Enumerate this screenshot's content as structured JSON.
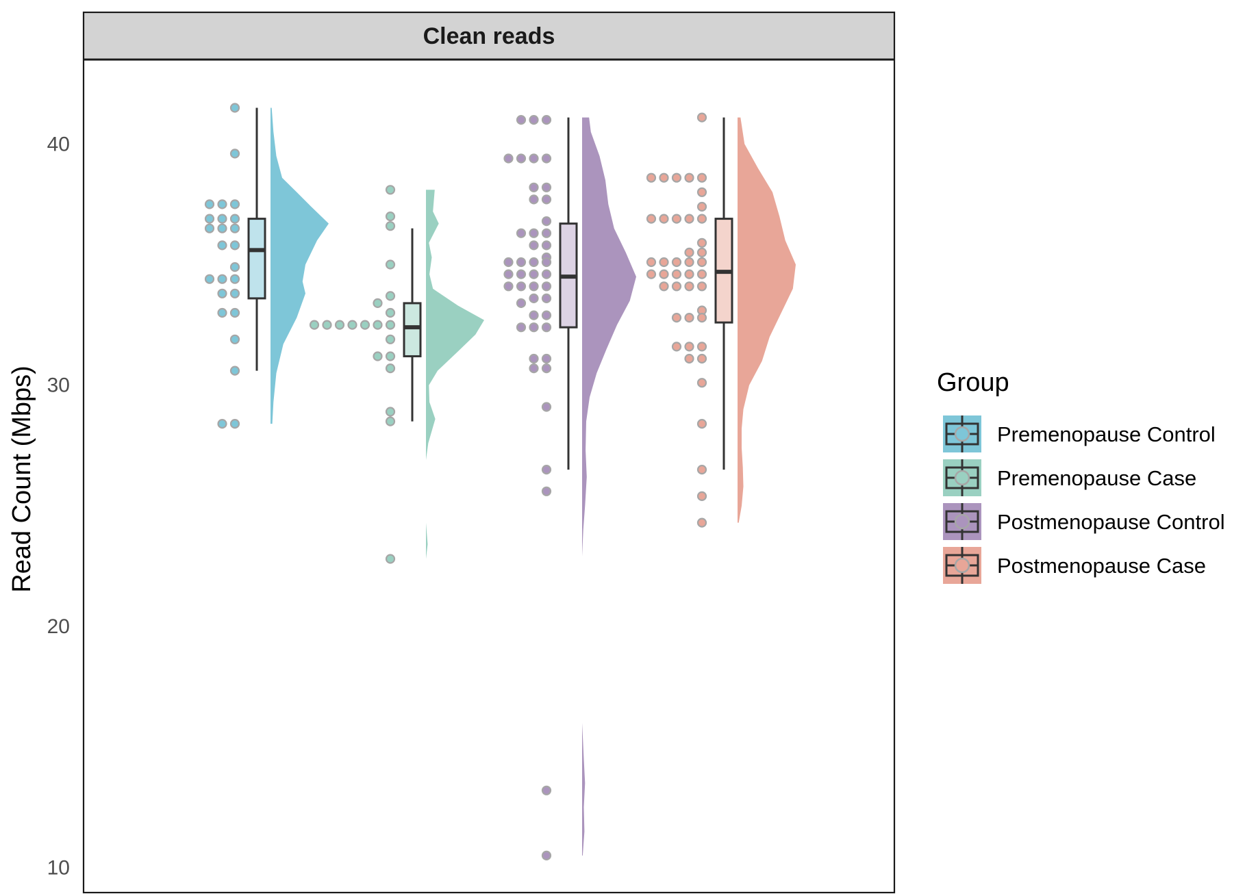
{
  "chart_data": {
    "type": "raincloud",
    "panel_title": "Clean reads",
    "ylabel": "Read Count (Mbps)",
    "xlabel": "",
    "ylim": [
      8.966,
      43.5
    ],
    "yticks": [
      10,
      20,
      30,
      40
    ],
    "ytick_labels": [
      "10",
      "20",
      "30",
      "40"
    ],
    "grid": false,
    "legend": {
      "title": "Group",
      "position": "right"
    },
    "series": [
      {
        "name": "Premenopause Control",
        "fill": "#7ec6d8",
        "box_fill": "#bfe3ec",
        "box": {
          "min": 30.6,
          "q1": 33.6,
          "median": 35.6,
          "q3": 36.9,
          "max": 41.5
        },
        "points": [
          41.5,
          39.6,
          37.5,
          37.5,
          37.5,
          36.9,
          36.9,
          36.9,
          36.5,
          36.5,
          36.5,
          35.8,
          35.8,
          34.9,
          34.4,
          34.4,
          34.4,
          33.8,
          33.8,
          33.0,
          33.0,
          31.9,
          30.6,
          28.4,
          28.4
        ],
        "density": [
          [
            28.4,
            0.03
          ],
          [
            29.3,
            0.05
          ],
          [
            30.5,
            0.1
          ],
          [
            31.7,
            0.22
          ],
          [
            32.8,
            0.45
          ],
          [
            33.8,
            0.6
          ],
          [
            34.3,
            0.55
          ],
          [
            35.0,
            0.6
          ],
          [
            36.0,
            0.8
          ],
          [
            36.7,
            1.0
          ],
          [
            37.4,
            0.7
          ],
          [
            38.0,
            0.45
          ],
          [
            38.6,
            0.2
          ],
          [
            39.5,
            0.1
          ],
          [
            40.5,
            0.05
          ],
          [
            41.5,
            0.02
          ]
        ]
      },
      {
        "name": "Premenopause Case",
        "fill": "#9ad0c1",
        "box_fill": "#cce8e0",
        "box": {
          "min": 28.5,
          "q1": 31.2,
          "median": 32.4,
          "q3": 33.4,
          "max": 36.5
        },
        "points": [
          38.1,
          37.0,
          36.6,
          35.0,
          33.7,
          33.4,
          33.0,
          32.5,
          32.5,
          32.5,
          32.5,
          32.5,
          32.5,
          32.5,
          31.9,
          31.2,
          31.2,
          30.7,
          28.9,
          28.5,
          22.8
        ],
        "density": [
          [
            22.8,
            0.0
          ],
          [
            23.4,
            0.03
          ],
          [
            24.3,
            0.0
          ],
          [
            26.9,
            0.0
          ],
          [
            27.6,
            0.04
          ],
          [
            28.6,
            0.16
          ],
          [
            29.3,
            0.06
          ],
          [
            30.0,
            0.05
          ],
          [
            30.6,
            0.2
          ],
          [
            31.4,
            0.55
          ],
          [
            32.1,
            0.85
          ],
          [
            32.7,
            1.0
          ],
          [
            33.3,
            0.55
          ],
          [
            34.0,
            0.12
          ],
          [
            34.6,
            0.06
          ],
          [
            35.3,
            0.1
          ],
          [
            35.9,
            0.05
          ],
          [
            36.7,
            0.22
          ],
          [
            37.2,
            0.12
          ],
          [
            38.1,
            0.15
          ]
        ]
      },
      {
        "name": "Postmenopause Control",
        "fill": "#ab94bd",
        "box_fill": "#ddd3e4",
        "box": {
          "min": 26.5,
          "q1": 32.4,
          "median": 34.5,
          "q3": 36.7,
          "max": 41.1
        },
        "points": [
          41.0,
          41.0,
          41.0,
          39.4,
          39.4,
          39.4,
          39.4,
          38.2,
          38.2,
          37.7,
          37.7,
          36.8,
          36.3,
          36.3,
          36.3,
          35.8,
          35.8,
          35.3,
          35.1,
          35.1,
          35.1,
          35.1,
          34.6,
          34.6,
          34.6,
          34.6,
          34.1,
          34.1,
          34.1,
          34.1,
          33.6,
          33.6,
          33.4,
          32.9,
          32.9,
          32.4,
          32.4,
          32.4,
          31.1,
          31.1,
          30.7,
          30.7,
          29.1,
          26.5,
          25.6,
          13.2,
          10.5
        ],
        "density": [
          [
            10.5,
            0.01
          ],
          [
            11.5,
            0.04
          ],
          [
            12.5,
            0.03
          ],
          [
            13.5,
            0.05
          ],
          [
            14.5,
            0.03
          ],
          [
            15.5,
            0.01
          ],
          [
            16.0,
            0.0
          ],
          [
            22.9,
            0.0
          ],
          [
            24.0,
            0.02
          ],
          [
            25.0,
            0.05
          ],
          [
            26.2,
            0.08
          ],
          [
            27.3,
            0.06
          ],
          [
            28.5,
            0.07
          ],
          [
            29.5,
            0.13
          ],
          [
            30.5,
            0.25
          ],
          [
            31.5,
            0.42
          ],
          [
            32.5,
            0.6
          ],
          [
            33.5,
            0.82
          ],
          [
            34.5,
            0.93
          ],
          [
            35.5,
            0.75
          ],
          [
            36.5,
            0.55
          ],
          [
            37.5,
            0.45
          ],
          [
            38.5,
            0.4
          ],
          [
            39.5,
            0.3
          ],
          [
            40.5,
            0.15
          ],
          [
            41.1,
            0.12
          ]
        ]
      },
      {
        "name": "Postmenopause Case",
        "fill": "#e8a698",
        "box_fill": "#f4d4cc",
        "box": {
          "min": 26.5,
          "q1": 32.6,
          "median": 34.7,
          "q3": 36.9,
          "max": 41.1
        },
        "points": [
          41.1,
          38.6,
          38.6,
          38.6,
          38.6,
          38.6,
          38.0,
          37.4,
          36.9,
          36.9,
          36.9,
          36.9,
          36.9,
          35.9,
          35.5,
          35.5,
          35.1,
          35.1,
          35.1,
          35.1,
          35.1,
          34.6,
          34.6,
          34.6,
          34.6,
          34.6,
          34.1,
          34.1,
          34.1,
          34.1,
          33.1,
          32.8,
          32.8,
          32.8,
          31.6,
          31.6,
          31.6,
          31.1,
          31.1,
          30.1,
          28.4,
          26.5,
          25.4,
          24.3
        ],
        "density": [
          [
            24.3,
            0.02
          ],
          [
            25.0,
            0.07
          ],
          [
            25.8,
            0.1
          ],
          [
            26.6,
            0.09
          ],
          [
            27.4,
            0.07
          ],
          [
            28.2,
            0.07
          ],
          [
            29.0,
            0.1
          ],
          [
            30.0,
            0.2
          ],
          [
            31.0,
            0.42
          ],
          [
            32.0,
            0.55
          ],
          [
            33.0,
            0.75
          ],
          [
            34.0,
            0.95
          ],
          [
            35.0,
            1.0
          ],
          [
            36.0,
            0.82
          ],
          [
            37.0,
            0.72
          ],
          [
            38.0,
            0.6
          ],
          [
            39.0,
            0.35
          ],
          [
            40.0,
            0.12
          ],
          [
            41.1,
            0.05
          ]
        ]
      }
    ]
  }
}
